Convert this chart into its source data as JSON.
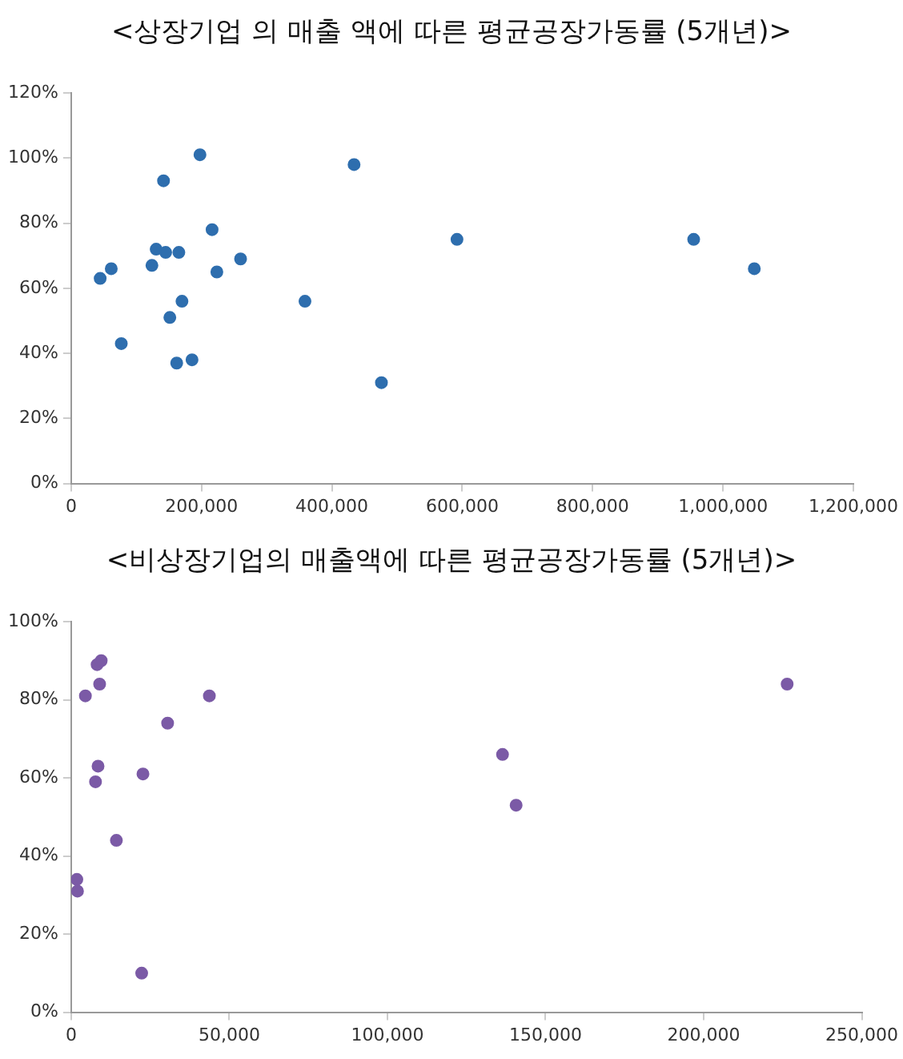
{
  "chart_data": [
    {
      "type": "scatter",
      "title": "<상장기업 의 매출 액에 따른 평균공장가동률 (5개년)>",
      "marker": "circle",
      "grid": false,
      "legend": false,
      "x": [
        44500,
        61500,
        76900,
        123900,
        130400,
        145000,
        141700,
        151400,
        161900,
        165200,
        170000,
        185400,
        197600,
        216200,
        223500,
        259900,
        358700,
        434000,
        476000,
        591900,
        955000,
        1048000
      ],
      "series": [
        {
          "color": "#2e6eae",
          "values": [
            63,
            66,
            43,
            67,
            72,
            71,
            93,
            51,
            37,
            71,
            56,
            38,
            101,
            78,
            65,
            69,
            56,
            98,
            31,
            75,
            75,
            66
          ]
        }
      ],
      "xlim": [
        0,
        1200000
      ],
      "xticks": [
        {
          "value": 0,
          "label": "0"
        },
        {
          "value": 200000,
          "label": "200,000"
        },
        {
          "value": 400000,
          "label": "400,000"
        },
        {
          "value": 600000,
          "label": "600,000"
        },
        {
          "value": 800000,
          "label": "800,000"
        },
        {
          "value": 1000000,
          "label": "1,000,000"
        },
        {
          "value": 1200000,
          "label": "1,200,000"
        }
      ],
      "ylim": [
        0,
        120
      ],
      "yticks": [
        {
          "value": 0,
          "label": "0%"
        },
        {
          "value": 20,
          "label": "20%"
        },
        {
          "value": 40,
          "label": "40%"
        },
        {
          "value": 60,
          "label": "60%"
        },
        {
          "value": 80,
          "label": "80%"
        },
        {
          "value": 100,
          "label": "100%"
        },
        {
          "value": 120,
          "label": "120%"
        }
      ]
    },
    {
      "type": "scatter",
      "title": "<비상장기업의 매출액에 따른 평균공장가동률 (5개년)>",
      "marker": "circle",
      "grid": false,
      "legend": false,
      "x": [
        1800,
        2000,
        4500,
        7700,
        8500,
        8200,
        9500,
        9000,
        14300,
        22300,
        22700,
        30500,
        43700,
        136400,
        140700,
        226400
      ],
      "series": [
        {
          "color": "#7b5aa6",
          "values": [
            34,
            31,
            81,
            59,
            63,
            89,
            90,
            84,
            44,
            10,
            61,
            74,
            81,
            66,
            53,
            84
          ]
        }
      ],
      "xlim": [
        0,
        250000
      ],
      "xticks": [
        {
          "value": 0,
          "label": "0"
        },
        {
          "value": 50000,
          "label": "50,000"
        },
        {
          "value": 100000,
          "label": "100,000"
        },
        {
          "value": 150000,
          "label": "150,000"
        },
        {
          "value": 200000,
          "label": "200,000"
        },
        {
          "value": 250000,
          "label": "250,000"
        }
      ],
      "ylim": [
        0,
        100
      ],
      "yticks": [
        {
          "value": 0,
          "label": "0%"
        },
        {
          "value": 20,
          "label": "20%"
        },
        {
          "value": 40,
          "label": "40%"
        },
        {
          "value": 60,
          "label": "60%"
        },
        {
          "value": 80,
          "label": "80%"
        },
        {
          "value": 100,
          "label": "100%"
        }
      ]
    }
  ]
}
